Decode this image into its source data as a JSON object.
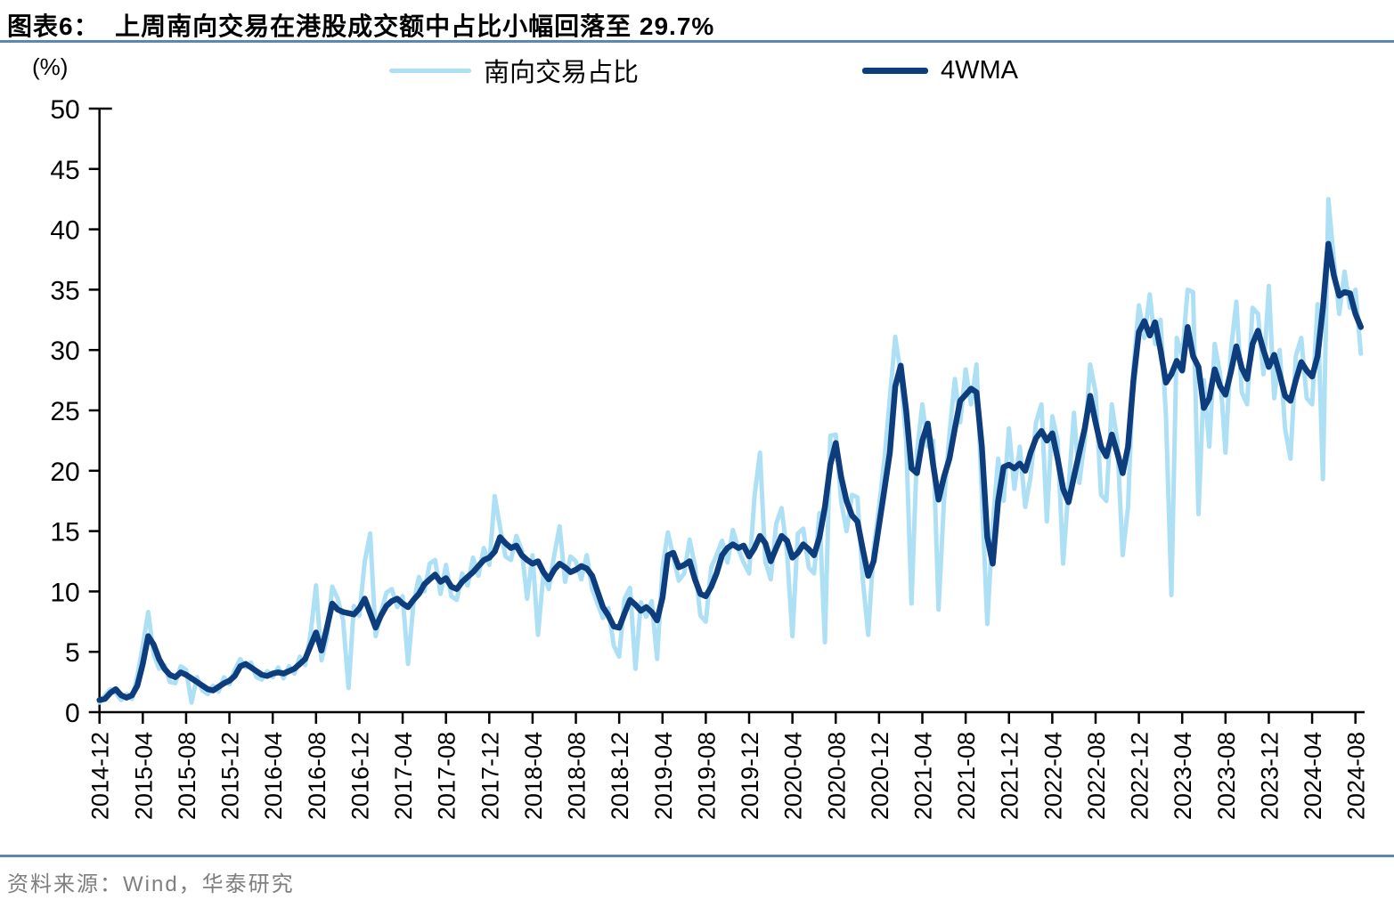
{
  "header": {
    "title": "图表6：  上周南向交易在港股成交额中占比小幅回落至 29.7%"
  },
  "footer": {
    "source": "资料来源：Wind，华泰研究"
  },
  "colors": {
    "rule_blue": "#5b87b3",
    "axis_black": "#000000",
    "source_gray": "#7f7f7f"
  },
  "chart_data": {
    "type": "line",
    "title": "上周南向交易在港股成交额中占比小幅回落至 29.7%",
    "y_unit_label": "(%)",
    "ylim": [
      0,
      50
    ],
    "ytick_step": 5,
    "ytick_labels": [
      "0",
      "5",
      "10",
      "15",
      "20",
      "25",
      "30",
      "35",
      "40",
      "45",
      "50"
    ],
    "grid": false,
    "legend_position": "top",
    "latest_value_pct": 29.7,
    "x_start_month": "2014-12",
    "x_end_month": "2024-08",
    "x_step_months": 0.5,
    "x_tick_positions": [
      0,
      4,
      8,
      12,
      16,
      20,
      24,
      28,
      32,
      36,
      40,
      44,
      48,
      52,
      56,
      60,
      64,
      68,
      72,
      76,
      80,
      84,
      88,
      92,
      96,
      100,
      104,
      108,
      112,
      116
    ],
    "x_tick_labels": [
      "2014-12",
      "2015-04",
      "2015-08",
      "2015-12",
      "2016-04",
      "2016-08",
      "2016-12",
      "2017-04",
      "2017-08",
      "2017-12",
      "2018-04",
      "2018-08",
      "2018-12",
      "2019-04",
      "2019-08",
      "2019-12",
      "2020-04",
      "2020-08",
      "2020-12",
      "2021-04",
      "2021-08",
      "2021-12",
      "2022-04",
      "2022-08",
      "2022-12",
      "2023-04",
      "2023-08",
      "2023-12",
      "2024-04",
      "2024-08"
    ],
    "series": [
      {
        "name": "南向交易占比",
        "color": "#ade0f5",
        "stroke_width": 5,
        "values": [
          0.8,
          1.4,
          1.9,
          1.6,
          1.0,
          1.5,
          1.1,
          3.0,
          5.5,
          8.3,
          4.8,
          3.6,
          3.9,
          2.5,
          2.4,
          3.8,
          3.5,
          0.8,
          2.9,
          1.8,
          1.5,
          2.2,
          1.7,
          2.9,
          2.3,
          3.5,
          4.4,
          3.7,
          4.1,
          2.9,
          2.7,
          3.4,
          2.9,
          3.7,
          2.8,
          3.8,
          3.2,
          4.6,
          3.9,
          6.5,
          10.5,
          4.3,
          6.2,
          10.4,
          9.4,
          7.6,
          2.0,
          8.8,
          8.0,
          12.5,
          14.8,
          6.3,
          8.2,
          9.9,
          10.2,
          8.7,
          9.6,
          4.0,
          9.0,
          11.2,
          10.0,
          12.3,
          12.6,
          9.8,
          12.2,
          9.6,
          9.3,
          11.5,
          10.5,
          12.8,
          11.3,
          13.6,
          12.2,
          17.9,
          15.3,
          12.9,
          12.6,
          14.6,
          13.4,
          9.4,
          13.0,
          6.4,
          11.5,
          10.2,
          13.0,
          15.4,
          10.8,
          12.9,
          12.5,
          11.0,
          13.0,
          10.2,
          9.0,
          7.8,
          8.6,
          5.5,
          4.6,
          9.4,
          10.3,
          3.6,
          9.1,
          7.9,
          9.2,
          4.4,
          12.0,
          14.9,
          12.9,
          10.9,
          11.5,
          14.3,
          12.1,
          8.0,
          7.5,
          12.0,
          13.0,
          14.2,
          12.4,
          15.1,
          13.5,
          12.4,
          11.5,
          17.9,
          21.5,
          12.5,
          11.0,
          15.6,
          16.9,
          13.2,
          6.3,
          14.8,
          15.2,
          12.0,
          11.5,
          16.5,
          5.8,
          22.9,
          23.0,
          17.5,
          15.0,
          18.0,
          17.8,
          11.0,
          6.4,
          13.5,
          17.0,
          21.0,
          26.0,
          31.1,
          28.0,
          22.5,
          9.0,
          21.5,
          25.5,
          22.0,
          22.5,
          8.5,
          17.5,
          23.0,
          27.6,
          24.0,
          28.4,
          25.5,
          28.8,
          18.0,
          7.3,
          15.5,
          21.0,
          17.5,
          23.5,
          18.5,
          22.0,
          17.0,
          19.5,
          24.0,
          25.5,
          15.8,
          24.5,
          22.5,
          12.3,
          18.5,
          24.8,
          19.0,
          22.5,
          28.8,
          26.5,
          18.0,
          17.5,
          25.5,
          22.5,
          13.0,
          17.0,
          28.5,
          33.7,
          31.0,
          34.6,
          30.5,
          32.5,
          24.5,
          9.7,
          31.0,
          29.5,
          35.0,
          34.8,
          16.4,
          27.5,
          22.0,
          30.5,
          28.0,
          21.5,
          30.0,
          34.0,
          26.5,
          25.5,
          33.5,
          33.0,
          28.0,
          35.3,
          26.0,
          30.0,
          23.5,
          21.0,
          29.5,
          31.0,
          26.0,
          25.5,
          33.8,
          19.3,
          42.5,
          37.5,
          33.0,
          36.5,
          33.5,
          35.0,
          29.7
        ]
      },
      {
        "name": "4WMA",
        "color": "#0d3d7c",
        "stroke_width": 6.5,
        "values": [
          1.0,
          1.1,
          1.6,
          1.9,
          1.4,
          1.2,
          1.4,
          2.2,
          4.0,
          6.3,
          5.6,
          4.4,
          3.6,
          3.1,
          2.9,
          3.3,
          3.1,
          2.8,
          2.5,
          2.2,
          1.9,
          1.8,
          2.1,
          2.4,
          2.6,
          3.0,
          3.8,
          4.0,
          3.7,
          3.4,
          3.1,
          3.0,
          3.2,
          3.3,
          3.2,
          3.4,
          3.6,
          4.0,
          4.4,
          5.5,
          6.6,
          5.1,
          7.0,
          9.0,
          8.5,
          8.3,
          8.2,
          8.1,
          8.6,
          9.4,
          8.2,
          7.0,
          8.0,
          8.8,
          9.2,
          9.4,
          9.0,
          8.7,
          9.3,
          9.8,
          10.6,
          11.0,
          11.4,
          10.8,
          11.1,
          10.4,
          10.2,
          10.8,
          11.2,
          11.6,
          12.1,
          12.6,
          12.8,
          13.3,
          14.5,
          14.0,
          13.6,
          13.8,
          13.0,
          12.6,
          12.3,
          12.5,
          11.6,
          11.0,
          11.8,
          12.3,
          12.0,
          11.6,
          11.8,
          12.1,
          11.9,
          11.3,
          10.0,
          8.7,
          8.0,
          7.1,
          7.0,
          8.2,
          9.3,
          8.9,
          8.4,
          8.7,
          8.3,
          7.6,
          9.5,
          13.0,
          13.2,
          12.0,
          12.2,
          12.5,
          11.0,
          9.8,
          9.6,
          10.4,
          11.5,
          13.0,
          13.6,
          13.9,
          13.6,
          13.8,
          12.9,
          13.6,
          14.6,
          14.0,
          12.5,
          13.6,
          14.6,
          14.2,
          12.8,
          13.2,
          13.9,
          13.5,
          13.0,
          14.5,
          17.0,
          20.5,
          22.3,
          19.5,
          17.5,
          16.3,
          15.8,
          13.5,
          11.3,
          12.5,
          15.5,
          18.5,
          21.5,
          27.0,
          28.7,
          25.0,
          20.2,
          19.8,
          22.5,
          23.9,
          20.5,
          17.6,
          19.5,
          21.0,
          23.5,
          25.8,
          26.3,
          26.8,
          26.5,
          22.0,
          14.5,
          12.3,
          17.5,
          20.3,
          20.5,
          20.2,
          20.6,
          20.0,
          21.5,
          22.7,
          23.3,
          22.5,
          23.1,
          21.0,
          18.5,
          17.4,
          19.5,
          21.5,
          23.5,
          26.2,
          24.0,
          22.0,
          21.2,
          23.0,
          21.5,
          19.8,
          22.0,
          27.5,
          31.5,
          32.4,
          31.2,
          32.3,
          30.0,
          27.3,
          28.0,
          29.1,
          28.3,
          31.9,
          29.5,
          28.6,
          25.2,
          26.0,
          28.4,
          27.0,
          26.3,
          28.2,
          30.3,
          28.5,
          27.6,
          30.5,
          31.6,
          30.0,
          28.6,
          29.6,
          28.0,
          26.2,
          25.8,
          27.5,
          29.0,
          28.3,
          27.8,
          29.5,
          33.5,
          38.8,
          36.2,
          34.5,
          34.8,
          34.7,
          33.0,
          31.9
        ]
      }
    ]
  }
}
